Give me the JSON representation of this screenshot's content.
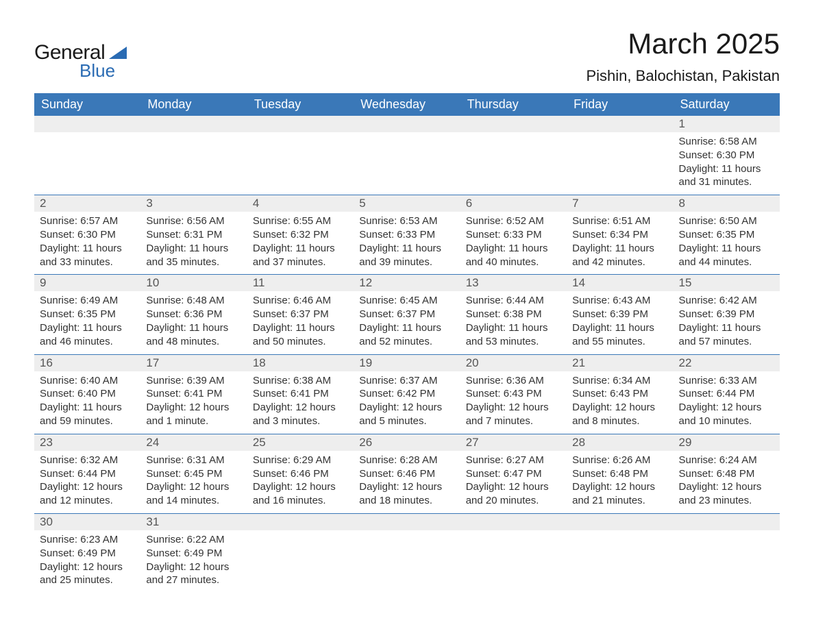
{
  "brand": {
    "line1": "General",
    "line2": "Blue",
    "accent_color": "#2a6bb3"
  },
  "title": {
    "month": "March 2025",
    "location": "Pishin, Balochistan, Pakistan"
  },
  "colors": {
    "header_bg": "#3a78b8",
    "header_text": "#ffffff",
    "daynum_bg": "#eeeeee",
    "daynum_text": "#555555",
    "body_text": "#333333",
    "row_divider": "#3a78b8",
    "page_bg": "#ffffff"
  },
  "typography": {
    "title_fontsize": 42,
    "location_fontsize": 22,
    "weekday_fontsize": 18,
    "daynum_fontsize": 17,
    "body_fontsize": 15,
    "font_family": "Arial, Helvetica, sans-serif"
  },
  "weekdays": [
    "Sunday",
    "Monday",
    "Tuesday",
    "Wednesday",
    "Thursday",
    "Friday",
    "Saturday"
  ],
  "weeks": [
    [
      null,
      null,
      null,
      null,
      null,
      null,
      {
        "n": "1",
        "sunrise": "Sunrise: 6:58 AM",
        "sunset": "Sunset: 6:30 PM",
        "daylight": "Daylight: 11 hours and 31 minutes."
      }
    ],
    [
      {
        "n": "2",
        "sunrise": "Sunrise: 6:57 AM",
        "sunset": "Sunset: 6:30 PM",
        "daylight": "Daylight: 11 hours and 33 minutes."
      },
      {
        "n": "3",
        "sunrise": "Sunrise: 6:56 AM",
        "sunset": "Sunset: 6:31 PM",
        "daylight": "Daylight: 11 hours and 35 minutes."
      },
      {
        "n": "4",
        "sunrise": "Sunrise: 6:55 AM",
        "sunset": "Sunset: 6:32 PM",
        "daylight": "Daylight: 11 hours and 37 minutes."
      },
      {
        "n": "5",
        "sunrise": "Sunrise: 6:53 AM",
        "sunset": "Sunset: 6:33 PM",
        "daylight": "Daylight: 11 hours and 39 minutes."
      },
      {
        "n": "6",
        "sunrise": "Sunrise: 6:52 AM",
        "sunset": "Sunset: 6:33 PM",
        "daylight": "Daylight: 11 hours and 40 minutes."
      },
      {
        "n": "7",
        "sunrise": "Sunrise: 6:51 AM",
        "sunset": "Sunset: 6:34 PM",
        "daylight": "Daylight: 11 hours and 42 minutes."
      },
      {
        "n": "8",
        "sunrise": "Sunrise: 6:50 AM",
        "sunset": "Sunset: 6:35 PM",
        "daylight": "Daylight: 11 hours and 44 minutes."
      }
    ],
    [
      {
        "n": "9",
        "sunrise": "Sunrise: 6:49 AM",
        "sunset": "Sunset: 6:35 PM",
        "daylight": "Daylight: 11 hours and 46 minutes."
      },
      {
        "n": "10",
        "sunrise": "Sunrise: 6:48 AM",
        "sunset": "Sunset: 6:36 PM",
        "daylight": "Daylight: 11 hours and 48 minutes."
      },
      {
        "n": "11",
        "sunrise": "Sunrise: 6:46 AM",
        "sunset": "Sunset: 6:37 PM",
        "daylight": "Daylight: 11 hours and 50 minutes."
      },
      {
        "n": "12",
        "sunrise": "Sunrise: 6:45 AM",
        "sunset": "Sunset: 6:37 PM",
        "daylight": "Daylight: 11 hours and 52 minutes."
      },
      {
        "n": "13",
        "sunrise": "Sunrise: 6:44 AM",
        "sunset": "Sunset: 6:38 PM",
        "daylight": "Daylight: 11 hours and 53 minutes."
      },
      {
        "n": "14",
        "sunrise": "Sunrise: 6:43 AM",
        "sunset": "Sunset: 6:39 PM",
        "daylight": "Daylight: 11 hours and 55 minutes."
      },
      {
        "n": "15",
        "sunrise": "Sunrise: 6:42 AM",
        "sunset": "Sunset: 6:39 PM",
        "daylight": "Daylight: 11 hours and 57 minutes."
      }
    ],
    [
      {
        "n": "16",
        "sunrise": "Sunrise: 6:40 AM",
        "sunset": "Sunset: 6:40 PM",
        "daylight": "Daylight: 11 hours and 59 minutes."
      },
      {
        "n": "17",
        "sunrise": "Sunrise: 6:39 AM",
        "sunset": "Sunset: 6:41 PM",
        "daylight": "Daylight: 12 hours and 1 minute."
      },
      {
        "n": "18",
        "sunrise": "Sunrise: 6:38 AM",
        "sunset": "Sunset: 6:41 PM",
        "daylight": "Daylight: 12 hours and 3 minutes."
      },
      {
        "n": "19",
        "sunrise": "Sunrise: 6:37 AM",
        "sunset": "Sunset: 6:42 PM",
        "daylight": "Daylight: 12 hours and 5 minutes."
      },
      {
        "n": "20",
        "sunrise": "Sunrise: 6:36 AM",
        "sunset": "Sunset: 6:43 PM",
        "daylight": "Daylight: 12 hours and 7 minutes."
      },
      {
        "n": "21",
        "sunrise": "Sunrise: 6:34 AM",
        "sunset": "Sunset: 6:43 PM",
        "daylight": "Daylight: 12 hours and 8 minutes."
      },
      {
        "n": "22",
        "sunrise": "Sunrise: 6:33 AM",
        "sunset": "Sunset: 6:44 PM",
        "daylight": "Daylight: 12 hours and 10 minutes."
      }
    ],
    [
      {
        "n": "23",
        "sunrise": "Sunrise: 6:32 AM",
        "sunset": "Sunset: 6:44 PM",
        "daylight": "Daylight: 12 hours and 12 minutes."
      },
      {
        "n": "24",
        "sunrise": "Sunrise: 6:31 AM",
        "sunset": "Sunset: 6:45 PM",
        "daylight": "Daylight: 12 hours and 14 minutes."
      },
      {
        "n": "25",
        "sunrise": "Sunrise: 6:29 AM",
        "sunset": "Sunset: 6:46 PM",
        "daylight": "Daylight: 12 hours and 16 minutes."
      },
      {
        "n": "26",
        "sunrise": "Sunrise: 6:28 AM",
        "sunset": "Sunset: 6:46 PM",
        "daylight": "Daylight: 12 hours and 18 minutes."
      },
      {
        "n": "27",
        "sunrise": "Sunrise: 6:27 AM",
        "sunset": "Sunset: 6:47 PM",
        "daylight": "Daylight: 12 hours and 20 minutes."
      },
      {
        "n": "28",
        "sunrise": "Sunrise: 6:26 AM",
        "sunset": "Sunset: 6:48 PM",
        "daylight": "Daylight: 12 hours and 21 minutes."
      },
      {
        "n": "29",
        "sunrise": "Sunrise: 6:24 AM",
        "sunset": "Sunset: 6:48 PM",
        "daylight": "Daylight: 12 hours and 23 minutes."
      }
    ],
    [
      {
        "n": "30",
        "sunrise": "Sunrise: 6:23 AM",
        "sunset": "Sunset: 6:49 PM",
        "daylight": "Daylight: 12 hours and 25 minutes."
      },
      {
        "n": "31",
        "sunrise": "Sunrise: 6:22 AM",
        "sunset": "Sunset: 6:49 PM",
        "daylight": "Daylight: 12 hours and 27 minutes."
      },
      null,
      null,
      null,
      null,
      null
    ]
  ]
}
